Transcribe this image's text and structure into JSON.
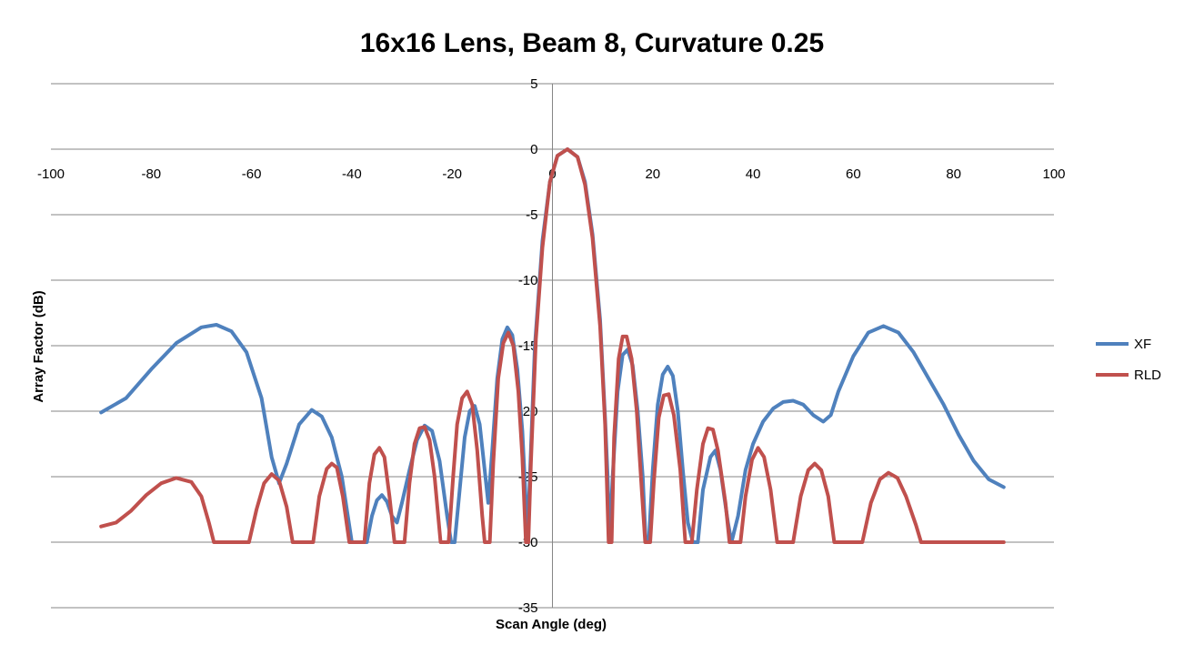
{
  "chart_data": {
    "type": "line",
    "title": "16x16 Lens, Beam 8, Curvature 0.25",
    "xlabel": "Scan Angle (deg)",
    "ylabel": "Array Factor (dB)",
    "xlim": [
      -100,
      100
    ],
    "ylim": [
      -35,
      5
    ],
    "x_ticks": [
      -100,
      -80,
      -60,
      -40,
      -20,
      0,
      20,
      40,
      60,
      80,
      100
    ],
    "y_ticks": [
      5,
      0,
      -5,
      -10,
      -15,
      -20,
      -25,
      -30,
      -35
    ],
    "grid": "horizontal",
    "legend_position": "right",
    "series": [
      {
        "name": "XF",
        "color": "#4F81BD",
        "points": [
          [
            -90,
            -20.1
          ],
          [
            -85,
            -19.0
          ],
          [
            -80,
            -16.8
          ],
          [
            -75,
            -14.8
          ],
          [
            -70,
            -13.6
          ],
          [
            -67,
            -13.4
          ],
          [
            -64,
            -13.9
          ],
          [
            -61,
            -15.5
          ],
          [
            -58,
            -19.0
          ],
          [
            -56,
            -23.5
          ],
          [
            -54.5,
            -25.5
          ],
          [
            -53,
            -24.0
          ],
          [
            -50.5,
            -21.0
          ],
          [
            -48,
            -19.9
          ],
          [
            -46,
            -20.4
          ],
          [
            -44,
            -22.0
          ],
          [
            -42,
            -25.0
          ],
          [
            -40,
            -30.0
          ],
          [
            -37,
            -30.0
          ],
          [
            -36,
            -28.0
          ],
          [
            -35,
            -26.8
          ],
          [
            -34,
            -26.4
          ],
          [
            -33,
            -26.9
          ],
          [
            -32,
            -28.0
          ],
          [
            -31,
            -28.5
          ],
          [
            -30,
            -27.0
          ],
          [
            -28.5,
            -24.5
          ],
          [
            -27,
            -22.2
          ],
          [
            -25.5,
            -21.1
          ],
          [
            -24,
            -21.5
          ],
          [
            -22.5,
            -23.8
          ],
          [
            -21,
            -28.0
          ],
          [
            -20.2,
            -30.0
          ],
          [
            -19.5,
            -30.0
          ],
          [
            -18.5,
            -26.0
          ],
          [
            -17.5,
            -22.0
          ],
          [
            -16.5,
            -20.0
          ],
          [
            -15.5,
            -19.6
          ],
          [
            -14.5,
            -21.0
          ],
          [
            -13.5,
            -24.5
          ],
          [
            -12.8,
            -27.0
          ],
          [
            -12.0,
            -23.0
          ],
          [
            -11.0,
            -17.5
          ],
          [
            -10.0,
            -14.5
          ],
          [
            -9.0,
            -13.6
          ],
          [
            -8.0,
            -14.2
          ],
          [
            -7.0,
            -16.8
          ],
          [
            -6.0,
            -21.5
          ],
          [
            -5.3,
            -27.0
          ],
          [
            -5.0,
            -30.0
          ],
          [
            -4.5,
            -25.0
          ],
          [
            -3.5,
            -15.0
          ],
          [
            -2.0,
            -7.0
          ],
          [
            -0.5,
            -2.5
          ],
          [
            1.0,
            -0.5
          ],
          [
            3.0,
            0.0
          ],
          [
            5.0,
            -0.6
          ],
          [
            6.5,
            -2.5
          ],
          [
            8.0,
            -6.5
          ],
          [
            9.5,
            -13.0
          ],
          [
            10.5,
            -20.5
          ],
          [
            11.0,
            -25.0
          ],
          [
            11.4,
            -30.0
          ],
          [
            12.0,
            -25.0
          ],
          [
            13.0,
            -18.5
          ],
          [
            14.0,
            -15.7
          ],
          [
            15.0,
            -15.3
          ],
          [
            16.0,
            -16.5
          ],
          [
            17.0,
            -20.0
          ],
          [
            18.0,
            -25.0
          ],
          [
            18.6,
            -30.0
          ],
          [
            19.2,
            -30.0
          ],
          [
            20.0,
            -24.5
          ],
          [
            21.0,
            -19.5
          ],
          [
            22.0,
            -17.2
          ],
          [
            23.0,
            -16.6
          ],
          [
            24.0,
            -17.3
          ],
          [
            25.0,
            -20.0
          ],
          [
            26.0,
            -24.5
          ],
          [
            27.0,
            -28.5
          ],
          [
            28.0,
            -30.0
          ],
          [
            29.0,
            -30.0
          ],
          [
            30.0,
            -26.0
          ],
          [
            31.5,
            -23.5
          ],
          [
            32.5,
            -23.0
          ],
          [
            33.5,
            -24.5
          ],
          [
            35.0,
            -28.5
          ],
          [
            35.7,
            -30.0
          ],
          [
            37.0,
            -28.0
          ],
          [
            38.5,
            -24.5
          ],
          [
            40.0,
            -22.5
          ],
          [
            42.0,
            -20.8
          ],
          [
            44.0,
            -19.8
          ],
          [
            46.0,
            -19.3
          ],
          [
            48.0,
            -19.2
          ],
          [
            50.0,
            -19.5
          ],
          [
            52.0,
            -20.3
          ],
          [
            54.0,
            -20.8
          ],
          [
            55.5,
            -20.3
          ],
          [
            57.0,
            -18.5
          ],
          [
            60.0,
            -15.8
          ],
          [
            63.0,
            -14.0
          ],
          [
            66.0,
            -13.5
          ],
          [
            69.0,
            -14.0
          ],
          [
            72.0,
            -15.5
          ],
          [
            75.0,
            -17.5
          ],
          [
            78.0,
            -19.5
          ],
          [
            81.0,
            -21.8
          ],
          [
            84.0,
            -23.8
          ],
          [
            87.0,
            -25.2
          ],
          [
            90.0,
            -25.8
          ]
        ]
      },
      {
        "name": "RLD",
        "color": "#C0504D",
        "points": [
          [
            -90,
            -28.8
          ],
          [
            -87,
            -28.5
          ],
          [
            -84,
            -27.6
          ],
          [
            -81,
            -26.4
          ],
          [
            -78,
            -25.5
          ],
          [
            -75,
            -25.1
          ],
          [
            -72,
            -25.4
          ],
          [
            -70,
            -26.5
          ],
          [
            -68.5,
            -28.5
          ],
          [
            -67.5,
            -30.0
          ],
          [
            -60.5,
            -30.0
          ],
          [
            -59,
            -27.5
          ],
          [
            -57.5,
            -25.5
          ],
          [
            -56,
            -24.8
          ],
          [
            -54.5,
            -25.3
          ],
          [
            -53,
            -27.3
          ],
          [
            -51.8,
            -30.0
          ],
          [
            -47.7,
            -30.0
          ],
          [
            -46.5,
            -26.5
          ],
          [
            -45,
            -24.4
          ],
          [
            -44,
            -24.0
          ],
          [
            -43,
            -24.3
          ],
          [
            -41.8,
            -26.5
          ],
          [
            -40.5,
            -30.0
          ],
          [
            -37.5,
            -30.0
          ],
          [
            -36.5,
            -25.5
          ],
          [
            -35.5,
            -23.3
          ],
          [
            -34.5,
            -22.8
          ],
          [
            -33.5,
            -23.5
          ],
          [
            -32.5,
            -26.5
          ],
          [
            -31.5,
            -30.0
          ],
          [
            -29.5,
            -30.0
          ],
          [
            -28.5,
            -25.5
          ],
          [
            -27.5,
            -22.5
          ],
          [
            -26.5,
            -21.3
          ],
          [
            -25.5,
            -21.2
          ],
          [
            -24.5,
            -22.2
          ],
          [
            -23.5,
            -25.0
          ],
          [
            -22.3,
            -30.0
          ],
          [
            -20.7,
            -30.0
          ],
          [
            -19.8,
            -25.0
          ],
          [
            -19.0,
            -21.0
          ],
          [
            -18.0,
            -19.0
          ],
          [
            -17.0,
            -18.5
          ],
          [
            -16.0,
            -19.5
          ],
          [
            -15.0,
            -23.0
          ],
          [
            -14.0,
            -28.0
          ],
          [
            -13.5,
            -30.0
          ],
          [
            -12.5,
            -30.0
          ],
          [
            -11.8,
            -24.0
          ],
          [
            -10.8,
            -17.5
          ],
          [
            -9.8,
            -14.8
          ],
          [
            -8.8,
            -14.0
          ],
          [
            -7.8,
            -15.0
          ],
          [
            -6.8,
            -18.5
          ],
          [
            -6.0,
            -23.5
          ],
          [
            -5.3,
            -30.0
          ],
          [
            -4.8,
            -30.0
          ],
          [
            -4.3,
            -24.0
          ],
          [
            -3.3,
            -14.5
          ],
          [
            -2.0,
            -7.5
          ],
          [
            -0.5,
            -2.5
          ],
          [
            1.0,
            -0.5
          ],
          [
            3.0,
            0.0
          ],
          [
            5.0,
            -0.6
          ],
          [
            6.5,
            -2.7
          ],
          [
            8.0,
            -6.8
          ],
          [
            9.5,
            -13.5
          ],
          [
            10.5,
            -21.0
          ],
          [
            11.2,
            -30.0
          ],
          [
            11.8,
            -30.0
          ],
          [
            12.3,
            -22.0
          ],
          [
            13.2,
            -16.0
          ],
          [
            14.0,
            -14.3
          ],
          [
            14.8,
            -14.3
          ],
          [
            15.8,
            -16.0
          ],
          [
            16.8,
            -20.0
          ],
          [
            17.8,
            -26.0
          ],
          [
            18.5,
            -30.0
          ],
          [
            19.5,
            -30.0
          ],
          [
            20.2,
            -25.5
          ],
          [
            21.2,
            -20.5
          ],
          [
            22.2,
            -18.8
          ],
          [
            23.2,
            -18.7
          ],
          [
            24.2,
            -20.3
          ],
          [
            25.5,
            -24.5
          ],
          [
            26.5,
            -30.0
          ],
          [
            27.8,
            -30.0
          ],
          [
            28.8,
            -26.0
          ],
          [
            30.0,
            -22.5
          ],
          [
            31.0,
            -21.3
          ],
          [
            32.0,
            -21.4
          ],
          [
            33.0,
            -23.0
          ],
          [
            34.5,
            -27.0
          ],
          [
            35.3,
            -30.0
          ],
          [
            37.5,
            -30.0
          ],
          [
            38.5,
            -26.5
          ],
          [
            39.8,
            -23.7
          ],
          [
            41.0,
            -22.8
          ],
          [
            42.2,
            -23.5
          ],
          [
            43.5,
            -26.0
          ],
          [
            44.8,
            -30.0
          ],
          [
            48.0,
            -30.0
          ],
          [
            49.5,
            -26.5
          ],
          [
            51.0,
            -24.5
          ],
          [
            52.3,
            -24.0
          ],
          [
            53.6,
            -24.5
          ],
          [
            55.0,
            -26.5
          ],
          [
            56.2,
            -30.0
          ],
          [
            61.8,
            -30.0
          ],
          [
            63.5,
            -27.0
          ],
          [
            65.3,
            -25.2
          ],
          [
            67.0,
            -24.7
          ],
          [
            68.8,
            -25.1
          ],
          [
            70.5,
            -26.5
          ],
          [
            72.5,
            -28.7
          ],
          [
            73.5,
            -30.0
          ],
          [
            90.0,
            -30.0
          ]
        ]
      }
    ]
  }
}
